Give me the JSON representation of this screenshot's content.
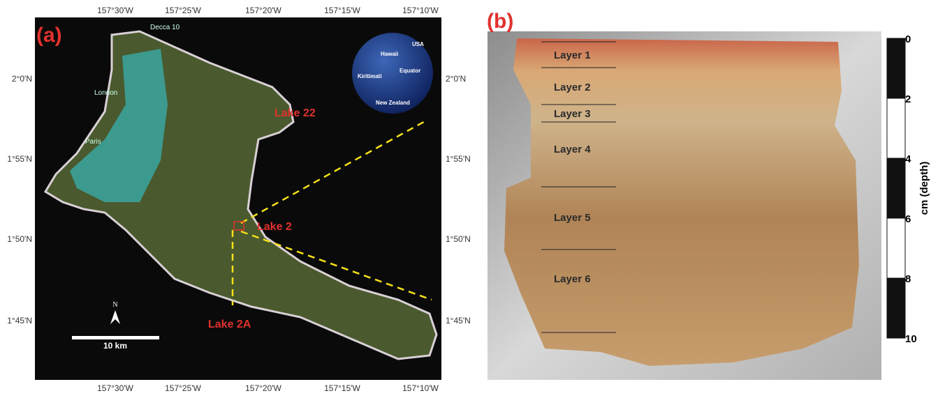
{
  "panel_a": {
    "label": "(a)",
    "lon_ticks": [
      "157°30'W",
      "157°25'W",
      "157°20'W",
      "157°15'W",
      "157°10'W"
    ],
    "lat_ticks": [
      "2°0'N",
      "1°55'N",
      "1°50'N",
      "1°45'N"
    ],
    "places": [
      "Decca 10",
      "London",
      "Paris"
    ],
    "lakes": [
      "Lake 22",
      "Lake 2",
      "Lake 2A"
    ],
    "globe": [
      "Hawaii",
      "USA",
      "Kiritimati",
      "Equator",
      "New Zealand"
    ],
    "north": "N",
    "scale_bar": "10 km"
  },
  "panel_b": {
    "label": "(b)",
    "layers": [
      "Layer 1",
      "Layer 2",
      "Layer 3",
      "Layer 4",
      "Layer 5",
      "Layer 6"
    ],
    "depth_axis": {
      "label": "cm (depth)",
      "ticks": [
        0,
        2,
        4,
        6,
        8,
        10
      ]
    }
  }
}
